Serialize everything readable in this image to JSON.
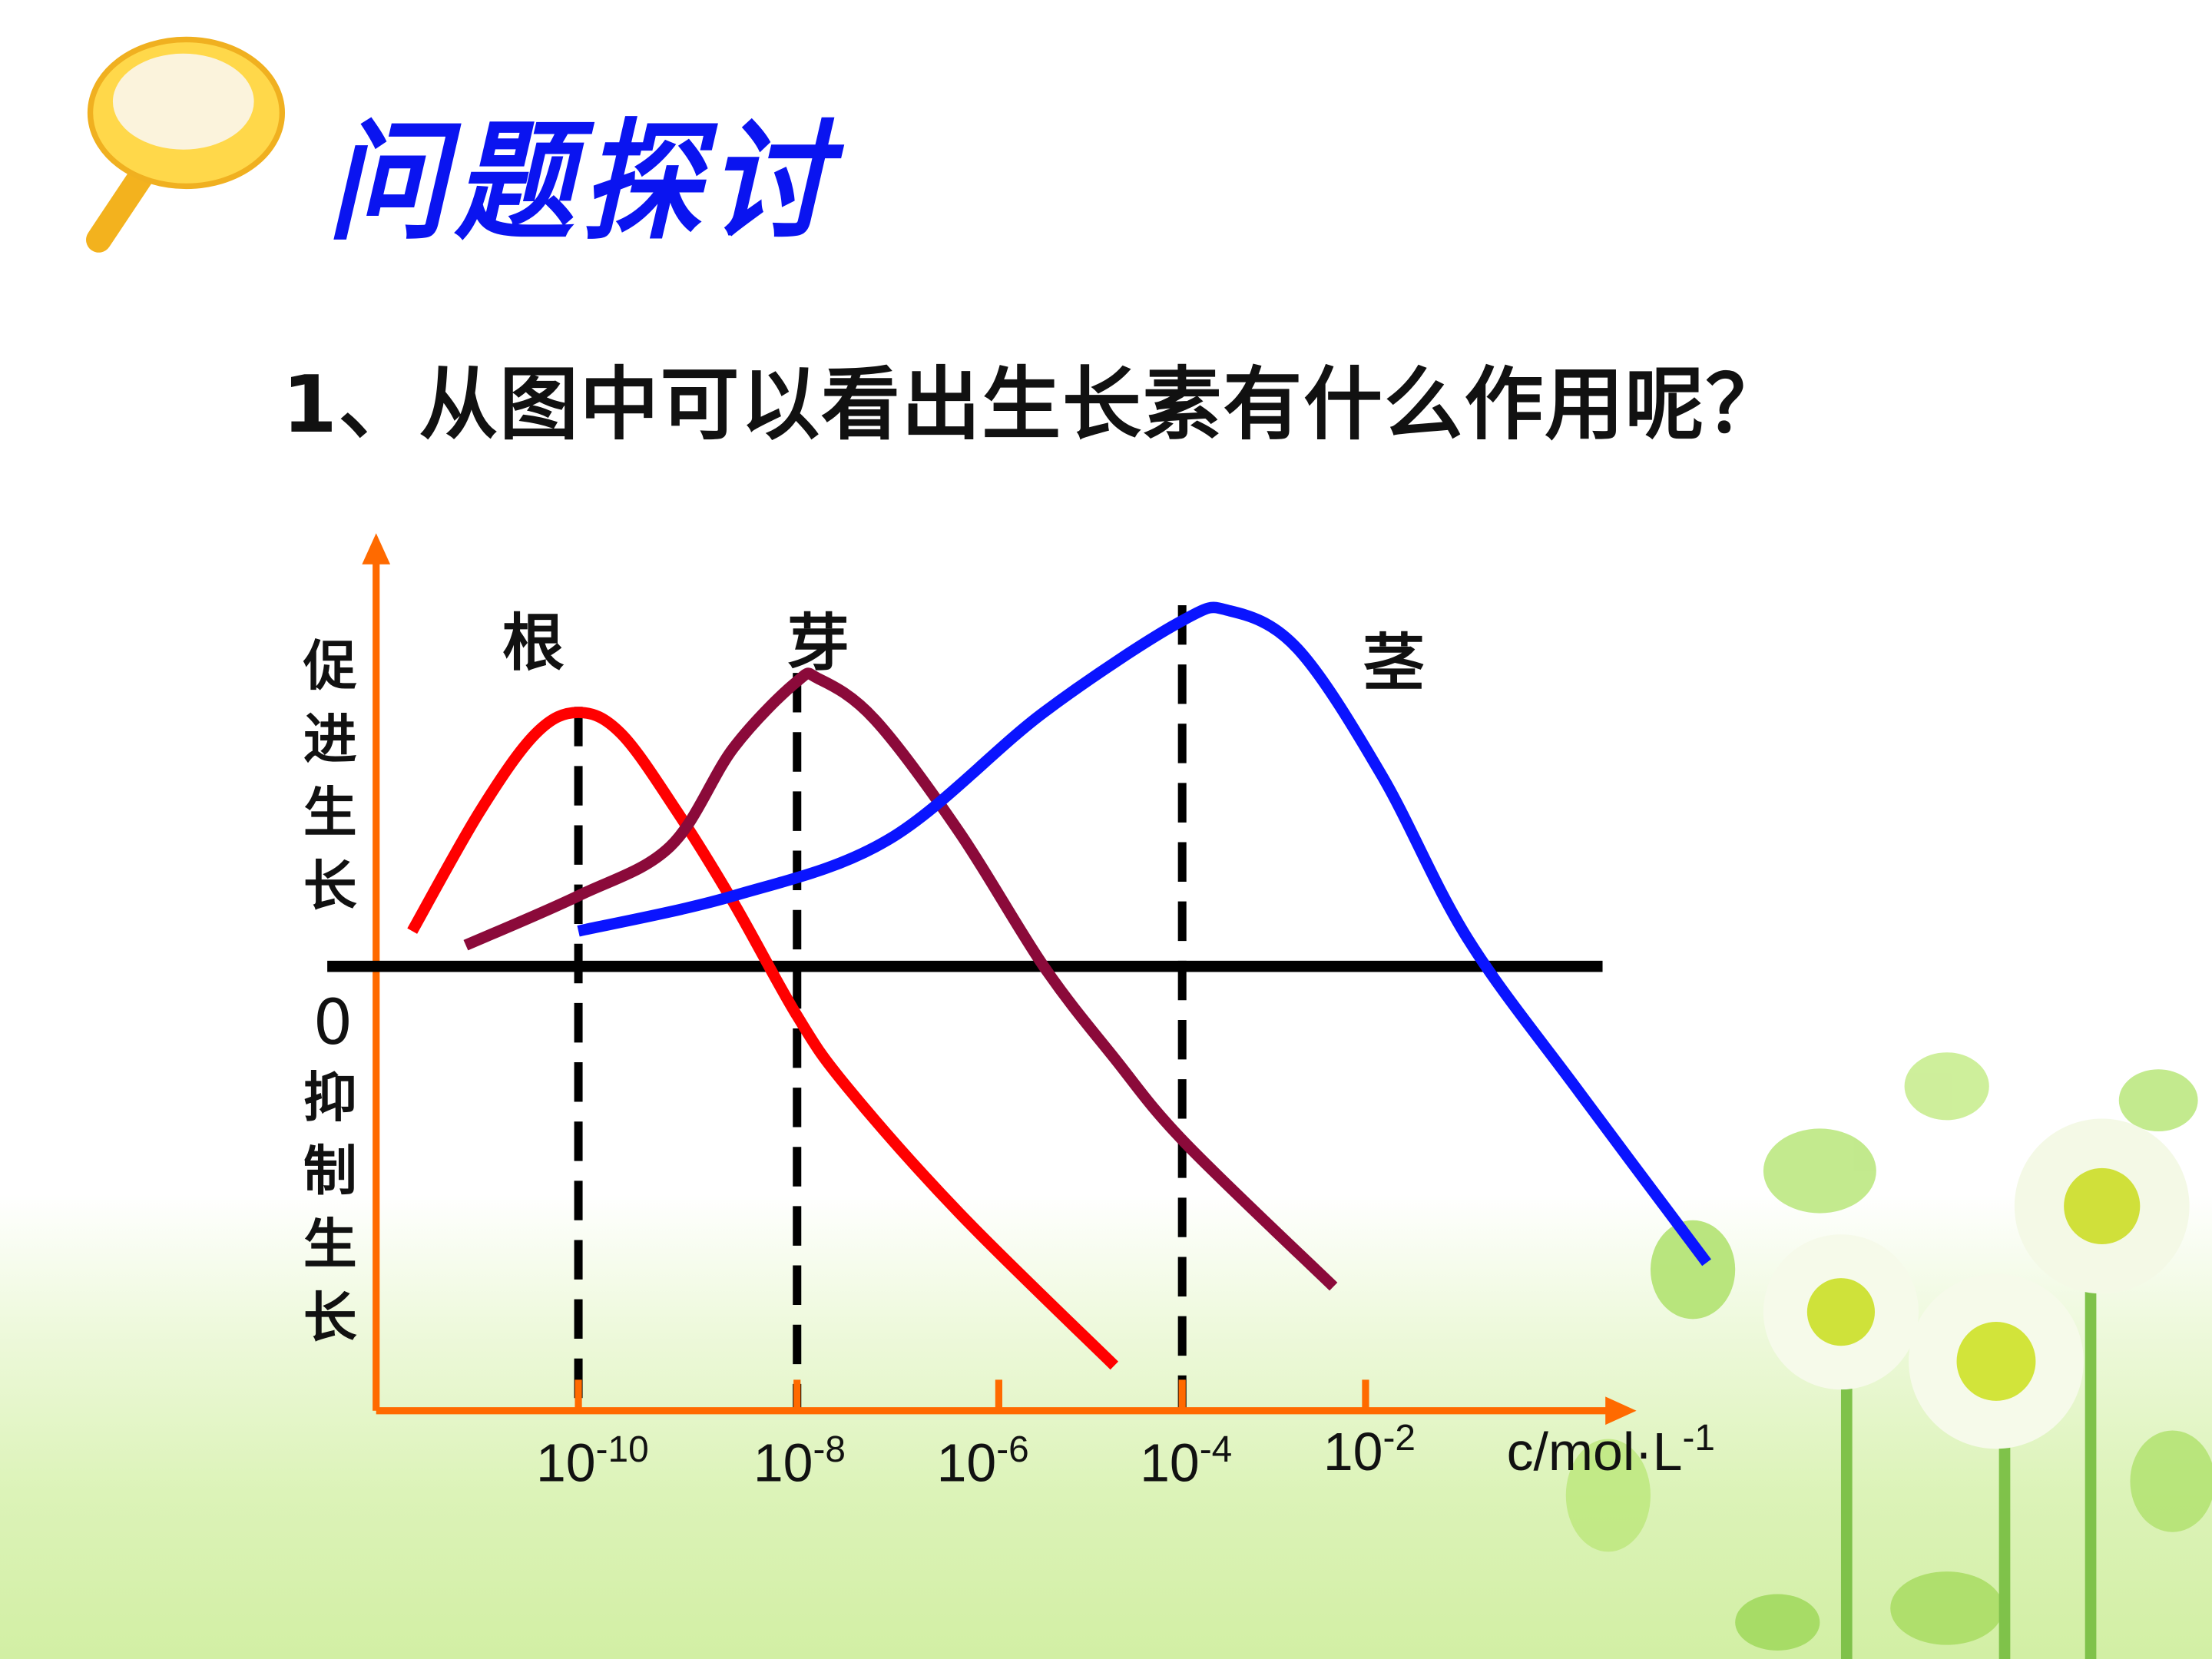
{
  "slide": {
    "title": "问题探讨",
    "question": "1、从图中可以看出生长素有什么作用呢？"
  },
  "colors": {
    "title": "#0a14f0",
    "axis": "#ff6a00",
    "root": "#ff0000",
    "bud": "#8b0a3a",
    "stem": "#0a14ff",
    "baseline": "#000000"
  },
  "chart_data": {
    "type": "line",
    "title": "",
    "xlabel": {
      "base": "c/mol·L",
      "exp": "-1"
    },
    "ylabel_positive": "促进生长",
    "ylabel_zero": "0",
    "ylabel_negative": "抑制生长",
    "x_scale": "log10 concentration",
    "x_ticks": [
      {
        "value": -10,
        "base": "10",
        "exp": "-10"
      },
      {
        "value": -8,
        "base": "10",
        "exp": "-8"
      },
      {
        "value": -6,
        "base": "10",
        "exp": "-6"
      },
      {
        "value": -4,
        "base": "10",
        "exp": "-4"
      },
      {
        "value": -2,
        "base": "10",
        "exp": "-2"
      }
    ],
    "xlim": [
      -11.85,
      2.5
    ],
    "ylim": [
      -3.15,
      3.0
    ],
    "series": [
      {
        "name": "根",
        "color": "#ff0000",
        "optimum": -10,
        "x": [
          -11.52,
          -10.9,
          -10.39,
          -10,
          -9.61,
          -9.1,
          -8.58,
          -8,
          -7.51,
          -6.39,
          -4.74
        ],
        "y": [
          0.25,
          1.1,
          1.65,
          1.8,
          1.65,
          1.1,
          0.45,
          -0.35,
          -0.85,
          -1.75,
          -2.83
        ]
      },
      {
        "name": "芽",
        "color": "#8b0a3a",
        "optimum": -8,
        "x": [
          -11.03,
          -10,
          -9.16,
          -8.58,
          -8,
          -7.79,
          -7.23,
          -6.39,
          -5.51,
          -4.74,
          -3.97,
          -2.35
        ],
        "y": [
          0.15,
          0.5,
          0.85,
          1.55,
          2.02,
          2.04,
          1.75,
          0.95,
          0.0,
          -0.65,
          -1.25,
          -2.27
        ]
      },
      {
        "name": "茎",
        "color": "#0a14ff",
        "optimum": -4,
        "x": [
          -10,
          -8.58,
          -7.09,
          -5.51,
          -4,
          -3.48,
          -2.74,
          -1.82,
          -0.89,
          0.34,
          1.72
        ],
        "y": [
          0.25,
          0.5,
          0.9,
          1.8,
          2.45,
          2.52,
          2.25,
          1.35,
          0.2,
          -0.9,
          -2.1
        ]
      }
    ]
  }
}
